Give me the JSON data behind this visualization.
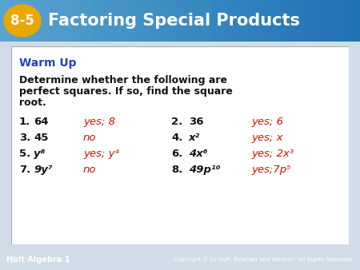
{
  "title_text": "Factoring Special Products",
  "title_badge": "8-5",
  "header_bg_top": "#2a6db5",
  "header_bg_bot": "#3a90cc",
  "badge_bg": "#e8a800",
  "badge_text_color": "#ffffff",
  "header_text_color": "#ffffff",
  "warm_up_color": "#2244bb",
  "card_bg": "#ffffff",
  "body_bg": "#d0dde8",
  "black": "#111111",
  "red": "#cc1100",
  "footer_bg": "#2a6db5",
  "footer_text": "Holt Algebra 1",
  "footer_right": "Copyright © by Holt, Rinehart and Winston. All Rights Reserved.",
  "prompt_line1": "Determine whether the following are",
  "prompt_line2": "perfect squares. If so, find the square",
  "prompt_line3": "root.",
  "rows": [
    {
      "left_num": "1.",
      "left_expr": "64",
      "left_ans": "yes; 8",
      "right_num": "2.",
      "right_expr": "36",
      "right_ans": "yes; 6"
    },
    {
      "left_num": "3.",
      "left_expr": "45",
      "left_ans": "no",
      "right_num": "4.",
      "right_expr": "x²",
      "right_ans": "yes; x"
    },
    {
      "left_num": "5.",
      "left_expr": "y⁸",
      "left_ans": "yes; y⁴",
      "right_num": "6.",
      "right_expr": "4x⁶",
      "right_ans": "yes; 2x³"
    },
    {
      "left_num": "7.",
      "left_expr": "9y⁷",
      "left_ans": "no",
      "right_num": "8.",
      "right_expr": "49p¹⁰",
      "right_ans": "yes;7p⁵"
    }
  ]
}
